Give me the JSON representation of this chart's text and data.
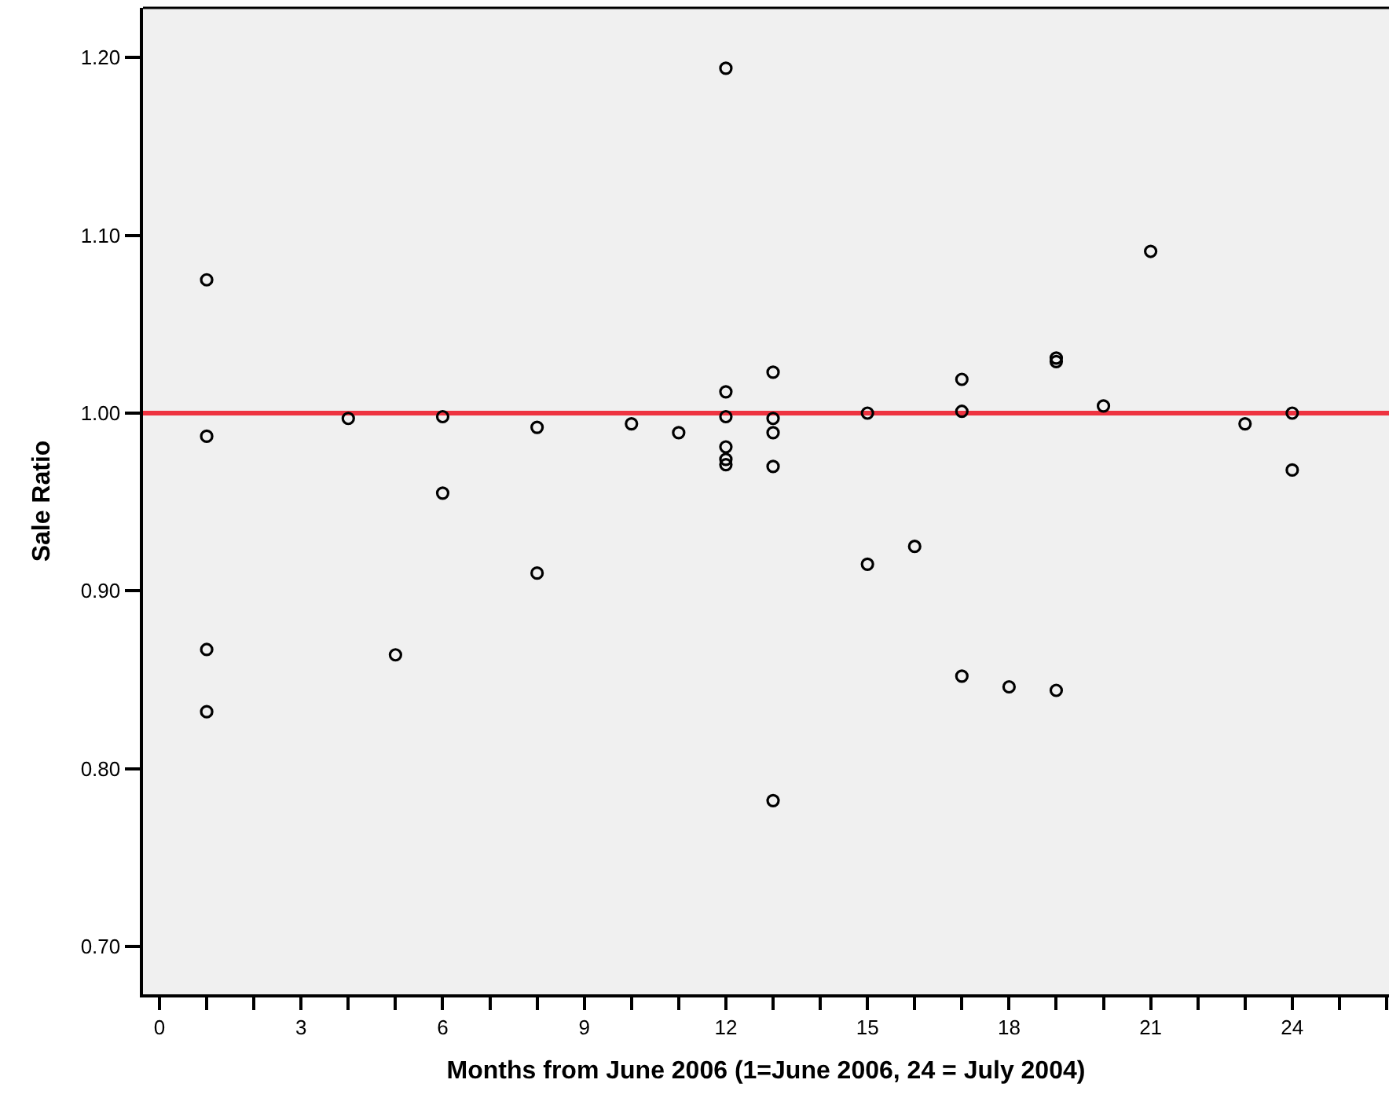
{
  "chart_data": {
    "type": "scatter",
    "xlabel": "Months from June 2006 (1=June 2006, 24 = July 2004)",
    "ylabel": "Sale Ratio",
    "series": [
      {
        "color": "#000000",
        "x": [
          1,
          1,
          1,
          1,
          4,
          5,
          6,
          6,
          8,
          8,
          10,
          11,
          12,
          12,
          12,
          12,
          12,
          12,
          13,
          13,
          13,
          13,
          13,
          15,
          15,
          16,
          17,
          17,
          17,
          18,
          19,
          19,
          19,
          20,
          21,
          23,
          24,
          24
        ],
        "values": [
          1.075,
          0.987,
          0.867,
          0.832,
          0.997,
          0.864,
          0.998,
          0.955,
          0.992,
          0.91,
          0.994,
          0.989,
          1.194,
          1.012,
          0.998,
          0.981,
          0.974,
          0.971,
          1.023,
          0.997,
          0.989,
          0.97,
          0.782,
          1.0,
          0.915,
          0.925,
          1.019,
          1.001,
          0.852,
          0.846,
          1.031,
          1.029,
          0.844,
          1.004,
          1.091,
          0.994,
          1.0,
          0.968
        ]
      }
    ],
    "xlim": [
      -0.35,
      26.05
    ],
    "xticks": [
      0,
      {
        "value": 1,
        "label": null
      },
      {
        "value": 2,
        "label": null
      },
      3,
      {
        "value": 4,
        "label": null
      },
      {
        "value": 5,
        "label": null
      },
      6,
      {
        "value": 7,
        "label": null
      },
      {
        "value": 8,
        "label": null
      },
      9,
      {
        "value": 10,
        "label": null
      },
      {
        "value": 11,
        "label": null
      },
      12,
      {
        "value": 13,
        "label": null
      },
      {
        "value": 14,
        "label": null
      },
      15,
      {
        "value": 16,
        "label": null
      },
      {
        "value": 17,
        "label": null
      },
      18,
      {
        "value": 19,
        "label": null
      },
      {
        "value": 20,
        "label": null
      },
      21,
      {
        "value": 22,
        "label": null
      },
      {
        "value": 23,
        "label": null
      },
      24,
      {
        "value": 25,
        "label": null
      },
      {
        "value": 26,
        "label": null
      }
    ],
    "ylim": [
      0.673,
      1.228
    ],
    "yticks": [
      {
        "value": 0.7,
        "label": "0.70"
      },
      {
        "value": 0.8,
        "label": "0.80"
      },
      {
        "value": 0.9,
        "label": "0.90"
      },
      {
        "value": 1.0,
        "label": "1.00"
      },
      {
        "value": 1.1,
        "label": "1.10"
      },
      {
        "value": 1.2,
        "label": "1.20"
      }
    ],
    "ref_lines": [
      {
        "axis": "y",
        "value": 1.0,
        "color": "#ee3340"
      }
    ],
    "marker": "circle"
  }
}
